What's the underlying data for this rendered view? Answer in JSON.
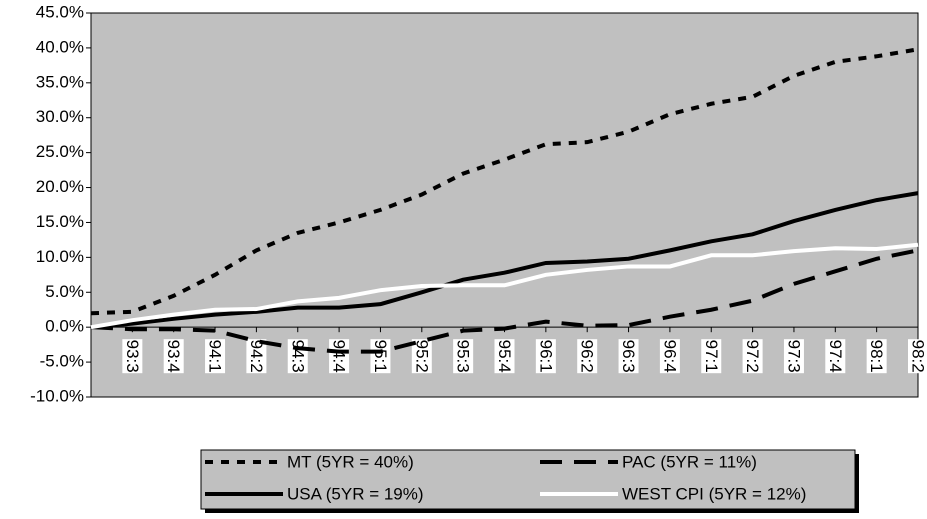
{
  "chart_data": {
    "type": "line",
    "categories": [
      null,
      "93:3",
      "93:4",
      "94:1",
      "94:2",
      "94:3",
      "94:4",
      "95:1",
      "95:2",
      "95:3",
      "95:4",
      "96:1",
      "96:2",
      "96:3",
      "96:4",
      "97:1",
      "97:2",
      "97:3",
      "97:4",
      "98:1",
      "98:2"
    ],
    "series": [
      {
        "name": "MT (5YR = 40%)",
        "color": "#000000",
        "dash": "8,8",
        "values": [
          2.0,
          2.2,
          4.5,
          7.5,
          11,
          13.5,
          15,
          16.8,
          19,
          22,
          24,
          26.2,
          26.5,
          28,
          30.5,
          32,
          33,
          36,
          38,
          38.8,
          39.8
        ]
      },
      {
        "name": "PAC (5YR = 11%)",
        "color": "#000000",
        "dash": "22,12",
        "values": [
          0,
          -0.3,
          -0.3,
          -0.5,
          -2,
          -3,
          -3.5,
          -3.5,
          -2,
          -0.5,
          -0.2,
          0.8,
          0.2,
          0.3,
          1.5,
          2.5,
          3.8,
          6.2,
          8,
          9.8,
          11
        ]
      },
      {
        "name": "USA (5YR = 19%)",
        "color": "#000000",
        "values": [
          0,
          0.5,
          1.2,
          1.8,
          2.2,
          2.8,
          2.8,
          3.3,
          5,
          6.8,
          7.8,
          9.2,
          9.4,
          9.8,
          11,
          12.3,
          13.3,
          15.2,
          16.8,
          18.2,
          19.2
        ]
      },
      {
        "name": "WEST CPI (5YR = 12%)",
        "color": "#ffffff",
        "values": [
          0,
          1,
          1.8,
          2.5,
          2.6,
          3.7,
          4.2,
          5.3,
          5.9,
          6,
          6,
          7.5,
          8.2,
          8.7,
          8.7,
          10.3,
          10.3,
          10.9,
          11.3,
          11.2,
          11.8
        ]
      }
    ],
    "ylim": [
      -10,
      45
    ],
    "yticks": [
      {
        "value": -10,
        "label": "-10.0%"
      },
      {
        "value": -5,
        "label": "-5.0%"
      },
      {
        "value": 0,
        "label": "0.0%"
      },
      {
        "value": 5,
        "label": "5.0%"
      },
      {
        "value": 10,
        "label": "10.0%"
      },
      {
        "value": 15,
        "label": "15.0%"
      },
      {
        "value": 20,
        "label": "20.0%"
      },
      {
        "value": 25,
        "label": "25.0%"
      },
      {
        "value": 30,
        "label": "30.0%"
      },
      {
        "value": 35,
        "label": "35.0%"
      },
      {
        "value": 40,
        "label": "40.0%"
      },
      {
        "value": 45,
        "label": "45.0%"
      }
    ],
    "legend": "bottom",
    "background": "#c0c0c0"
  }
}
